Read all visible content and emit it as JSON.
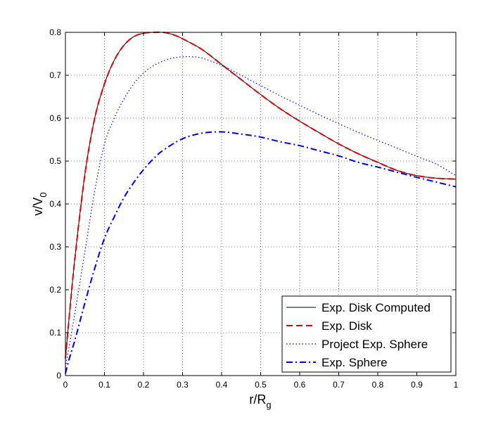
{
  "chart_data": {
    "type": "line",
    "xlabel": {
      "base": "r/R",
      "sub": "g"
    },
    "ylabel": {
      "base": "v/V",
      "sub": "0"
    },
    "xlim": [
      0,
      1
    ],
    "ylim": [
      0,
      0.8
    ],
    "xticks": [
      0,
      0.1,
      0.2,
      0.3,
      0.4,
      0.5,
      0.6,
      0.7,
      0.8,
      0.9,
      1
    ],
    "xtick_labels": [
      "0",
      "0.1",
      "0.2",
      "0.3",
      "0.4",
      "0.5",
      "0.6",
      "0.7",
      "0.8",
      "0.9",
      "1"
    ],
    "yticks": [
      0,
      0.1,
      0.2,
      0.3,
      0.4,
      0.5,
      0.6,
      0.7,
      0.8
    ],
    "ytick_labels": [
      "0",
      "0.1",
      "0.2",
      "0.3",
      "0.4",
      "0.5",
      "0.6",
      "0.7",
      "0.8"
    ],
    "grid": true,
    "legend_position": "bottom-right",
    "series": [
      {
        "name": "Exp. Disk Computed",
        "color": "#000000",
        "style": "solid",
        "x": [
          0,
          0.01,
          0.025,
          0.05,
          0.075,
          0.1,
          0.125,
          0.15,
          0.175,
          0.2,
          0.225,
          0.25,
          0.275,
          0.3,
          0.35,
          0.4,
          0.45,
          0.5,
          0.55,
          0.6,
          0.65,
          0.7,
          0.75,
          0.8,
          0.85,
          0.9,
          0.95,
          1.0
        ],
        "y": [
          0.04,
          0.14,
          0.28,
          0.47,
          0.6,
          0.68,
          0.735,
          0.77,
          0.79,
          0.798,
          0.8,
          0.8,
          0.795,
          0.785,
          0.76,
          0.725,
          0.69,
          0.655,
          0.622,
          0.593,
          0.566,
          0.54,
          0.517,
          0.497,
          0.478,
          0.466,
          0.46,
          0.458
        ]
      },
      {
        "name": "Exp. Disk",
        "color": "#e00000",
        "style": "dashed",
        "x": [
          0,
          0.01,
          0.025,
          0.05,
          0.075,
          0.1,
          0.125,
          0.15,
          0.175,
          0.2,
          0.225,
          0.25,
          0.275,
          0.3,
          0.35,
          0.4,
          0.45,
          0.5,
          0.55,
          0.6,
          0.65,
          0.7,
          0.75,
          0.8,
          0.85,
          0.9,
          0.95,
          1.0
        ],
        "y": [
          0.04,
          0.14,
          0.28,
          0.47,
          0.6,
          0.68,
          0.735,
          0.77,
          0.79,
          0.798,
          0.8,
          0.8,
          0.795,
          0.785,
          0.76,
          0.725,
          0.69,
          0.655,
          0.622,
          0.593,
          0.566,
          0.54,
          0.517,
          0.497,
          0.478,
          0.466,
          0.46,
          0.458
        ]
      },
      {
        "name": "Project Exp. Sphere",
        "color": "#0000ee",
        "style": "dotted",
        "x": [
          0,
          0.01,
          0.025,
          0.05,
          0.075,
          0.1,
          0.125,
          0.15,
          0.175,
          0.2,
          0.225,
          0.25,
          0.275,
          0.3,
          0.325,
          0.35,
          0.4,
          0.45,
          0.5,
          0.55,
          0.6,
          0.65,
          0.7,
          0.75,
          0.8,
          0.85,
          0.9,
          0.95,
          1.0
        ],
        "y": [
          0.02,
          0.07,
          0.15,
          0.29,
          0.43,
          0.54,
          0.6,
          0.645,
          0.68,
          0.705,
          0.722,
          0.733,
          0.74,
          0.743,
          0.743,
          0.74,
          0.723,
          0.7,
          0.676,
          0.652,
          0.63,
          0.608,
          0.587,
          0.567,
          0.548,
          0.53,
          0.511,
          0.493,
          0.466
        ]
      },
      {
        "name": "Exp. Sphere",
        "color": "#0000ee",
        "style": "dashdot",
        "x": [
          0,
          0.01,
          0.025,
          0.05,
          0.075,
          0.1,
          0.125,
          0.15,
          0.175,
          0.2,
          0.225,
          0.25,
          0.3,
          0.35,
          0.4,
          0.45,
          0.5,
          0.55,
          0.6,
          0.65,
          0.7,
          0.75,
          0.8,
          0.85,
          0.9,
          0.95,
          1.0
        ],
        "y": [
          0.005,
          0.04,
          0.085,
          0.17,
          0.25,
          0.32,
          0.37,
          0.415,
          0.45,
          0.48,
          0.505,
          0.525,
          0.552,
          0.565,
          0.568,
          0.563,
          0.556,
          0.545,
          0.536,
          0.524,
          0.512,
          0.497,
          0.486,
          0.474,
          0.462,
          0.451,
          0.44
        ]
      }
    ]
  }
}
